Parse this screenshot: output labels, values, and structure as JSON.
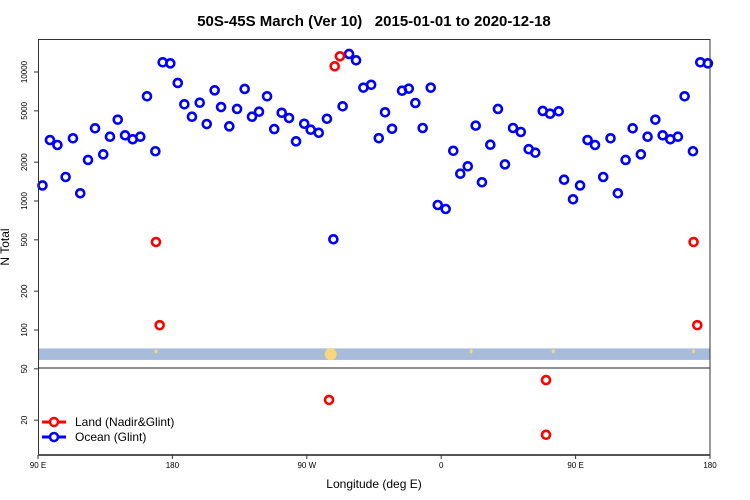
{
  "chart_data": {
    "type": "scatter",
    "title": "50S-45S March (Ver 10)   2015-01-01 to 2020-12-18",
    "xlabel": "Longitude (deg E)",
    "ylabel": "N Total",
    "y_scale": "log",
    "x_range_note": "longitude axis runs 90 E eastward through 180, 90 W, 0, 90 E, to 180 (points between 90 E and 180 drawn at both ends)",
    "x_tick_labels": [
      "90 E",
      "180",
      "90 W",
      "0",
      "90 E",
      "180"
    ],
    "y_tick_labels_upper": [
      "10000",
      "5000",
      "2000",
      "1000",
      "500",
      "200",
      "100"
    ],
    "y_tick_labels_lower": [
      "50",
      "20"
    ],
    "ylim": [
      10.7,
      17900
    ],
    "panel_split_value": 50,
    "grid": false,
    "legend": {
      "placement": "bottom-left",
      "entries": [
        "Land (Nadir&Glint)",
        "Ocean (Glint)"
      ]
    },
    "colors": {
      "land": "#ff0000",
      "ocean": "#0000ff",
      "band": "#a7bcdb",
      "band_marks": "#f8d67a"
    },
    "band_range": [
      58.6,
      72
    ],
    "band_marks_lon": [
      169,
      -74,
      20,
      75
    ],
    "series": [
      {
        "name": "Ocean (Glint)",
        "points": [
          [
            93,
            1320
          ],
          [
            98,
            2970
          ],
          [
            103,
            2717
          ],
          [
            108.5,
            1535
          ],
          [
            113.4,
            3062
          ],
          [
            118.3,
            1148
          ],
          [
            123.5,
            2080
          ],
          [
            128.2,
            3660
          ],
          [
            133.7,
            2300
          ],
          [
            138.2,
            3150
          ],
          [
            143.4,
            4270
          ],
          [
            148.3,
            3230
          ],
          [
            153.4,
            3010
          ],
          [
            158.5,
            3150
          ],
          [
            163,
            6480
          ],
          [
            168.6,
            2430
          ],
          [
            173.5,
            11890
          ],
          [
            178.6,
            11670
          ],
          [
            -176.4,
            8220
          ],
          [
            -172,
            5620
          ],
          [
            -166.9,
            4500
          ],
          [
            -161.7,
            5780
          ],
          [
            -157,
            3950
          ],
          [
            -151.7,
            7210
          ],
          [
            -147.4,
            5350
          ],
          [
            -141.9,
            3790
          ],
          [
            -136.7,
            5170
          ],
          [
            -131.6,
            7390
          ],
          [
            -126.7,
            4500
          ],
          [
            -122,
            4920
          ],
          [
            -116.6,
            6480
          ],
          [
            -111.8,
            3610
          ],
          [
            -106.8,
            4830
          ],
          [
            -101.9,
            4400
          ],
          [
            -97.2,
            2900
          ],
          [
            -91.7,
            3970
          ],
          [
            -87.4,
            3570
          ],
          [
            -82,
            3380
          ],
          [
            -76.5,
            4340
          ],
          [
            -72.2,
            505
          ],
          [
            -66,
            5420
          ],
          [
            -61.7,
            13800
          ],
          [
            -57,
            12330
          ],
          [
            -52.1,
            7560
          ],
          [
            -46.9,
            7960
          ],
          [
            -41.8,
            3070
          ],
          [
            -37.6,
            4870
          ],
          [
            -32.9,
            3630
          ],
          [
            -26.2,
            7160
          ],
          [
            -21.7,
            7430
          ],
          [
            -17.3,
            5750
          ],
          [
            -12.4,
            3680
          ],
          [
            -7,
            7560
          ],
          [
            -2.3,
            931
          ],
          [
            3,
            867
          ],
          [
            8.1,
            2450
          ],
          [
            12.8,
            1628
          ],
          [
            17.8,
            1858
          ],
          [
            23.1,
            3840
          ],
          [
            27.3,
            1397
          ],
          [
            32.9,
            2730
          ],
          [
            38,
            5170
          ],
          [
            42.7,
            1923
          ],
          [
            48.1,
            3680
          ],
          [
            53.3,
            3430
          ],
          [
            58.6,
            2520
          ],
          [
            63,
            2370
          ],
          [
            68,
            4990
          ],
          [
            72.9,
            4750
          ],
          [
            78.7,
            4960
          ],
          [
            82.3,
            1462
          ],
          [
            88.3,
            1031
          ]
        ]
      },
      {
        "name": "Land (Nadir&Glint)",
        "points": [
          [
            169,
            481
          ],
          [
            171.5,
            109
          ],
          [
            -71.3,
            11070
          ],
          [
            -67.8,
            13240
          ],
          [
            -75.1,
            28.7
          ],
          [
            70.2,
            40.9
          ],
          [
            70.2,
            15.4
          ]
        ]
      }
    ]
  }
}
